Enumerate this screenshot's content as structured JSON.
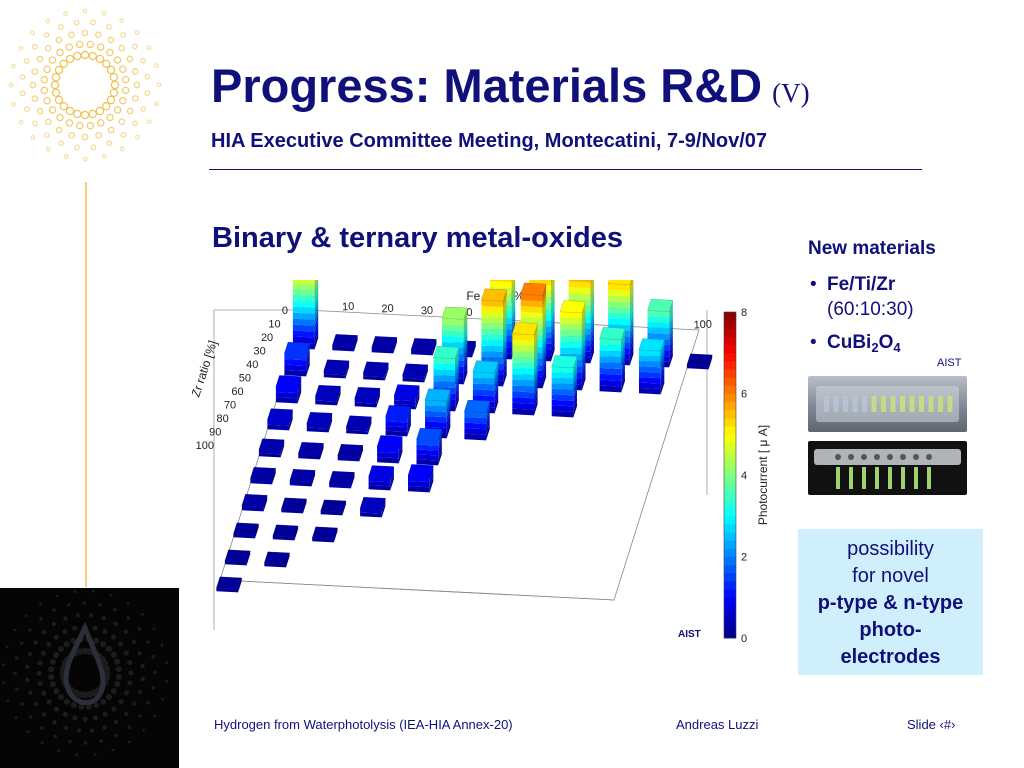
{
  "header": {
    "title": "Progress: Materials R&D",
    "title_part": "(V)",
    "subtitle": "HIA Executive Committee Meeting, Montecatini, 7-9/Nov/07"
  },
  "section_heading": "Binary & ternary metal-oxides",
  "chart_data": {
    "type": "bar3d",
    "x_axis": {
      "label": "Fe ratio [%]",
      "ticks": [
        "0",
        "10",
        "20",
        "30",
        "40",
        "50",
        "60",
        "70",
        "80",
        "90",
        "100"
      ]
    },
    "y_axis": {
      "label": "Zr ratio [%]",
      "ticks": [
        "0",
        "10",
        "20",
        "30",
        "40",
        "50",
        "60",
        "70",
        "80",
        "90",
        "100"
      ]
    },
    "colorbar": {
      "label": "Photocurrent [ μ A]",
      "ticks": [
        "0",
        "2",
        "4",
        "6",
        "8"
      ],
      "range": [
        0,
        8
      ]
    },
    "cells": [
      {
        "fe": 0,
        "zr": 10,
        "value": 5.0
      },
      {
        "fe": 0,
        "zr": 20,
        "value": 1.4
      },
      {
        "fe": 0,
        "zr": 30,
        "value": 1.0
      },
      {
        "fe": 0,
        "zr": 40,
        "value": 0.6
      },
      {
        "fe": 0,
        "zr": 50,
        "value": 0.4
      },
      {
        "fe": 0,
        "zr": 60,
        "value": 0.3
      },
      {
        "fe": 0,
        "zr": 70,
        "value": 0.3
      },
      {
        "fe": 0,
        "zr": 80,
        "value": 0.2
      },
      {
        "fe": 0,
        "zr": 90,
        "value": 0.2
      },
      {
        "fe": 0,
        "zr": 100,
        "value": 0.2
      },
      {
        "fe": 10,
        "zr": 10,
        "value": 0.3
      },
      {
        "fe": 10,
        "zr": 20,
        "value": 0.4
      },
      {
        "fe": 10,
        "zr": 30,
        "value": 0.5
      },
      {
        "fe": 10,
        "zr": 40,
        "value": 0.5
      },
      {
        "fe": 10,
        "zr": 50,
        "value": 0.3
      },
      {
        "fe": 10,
        "zr": 60,
        "value": 0.3
      },
      {
        "fe": 10,
        "zr": 70,
        "value": 0.2
      },
      {
        "fe": 10,
        "zr": 80,
        "value": 0.2
      },
      {
        "fe": 10,
        "zr": 90,
        "value": 0.2
      },
      {
        "fe": 20,
        "zr": 10,
        "value": 0.3
      },
      {
        "fe": 20,
        "zr": 20,
        "value": 0.4
      },
      {
        "fe": 20,
        "zr": 30,
        "value": 0.5
      },
      {
        "fe": 20,
        "zr": 40,
        "value": 0.4
      },
      {
        "fe": 20,
        "zr": 50,
        "value": 0.3
      },
      {
        "fe": 20,
        "zr": 60,
        "value": 0.3
      },
      {
        "fe": 20,
        "zr": 70,
        "value": 0.2
      },
      {
        "fe": 20,
        "zr": 80,
        "value": 0.2
      },
      {
        "fe": 30,
        "zr": 10,
        "value": 0.3
      },
      {
        "fe": 30,
        "zr": 20,
        "value": 0.4
      },
      {
        "fe": 30,
        "zr": 30,
        "value": 0.8
      },
      {
        "fe": 30,
        "zr": 40,
        "value": 1.2
      },
      {
        "fe": 30,
        "zr": 50,
        "value": 1.0
      },
      {
        "fe": 30,
        "zr": 60,
        "value": 0.8
      },
      {
        "fe": 30,
        "zr": 70,
        "value": 0.5
      },
      {
        "fe": 40,
        "zr": 10,
        "value": 0.3
      },
      {
        "fe": 40,
        "zr": 20,
        "value": 4.2
      },
      {
        "fe": 40,
        "zr": 30,
        "value": 3.4
      },
      {
        "fe": 40,
        "zr": 40,
        "value": 2.4
      },
      {
        "fe": 40,
        "zr": 50,
        "value": 1.6
      },
      {
        "fe": 40,
        "zr": 60,
        "value": 1.0
      },
      {
        "fe": 50,
        "zr": 10,
        "value": 7.3
      },
      {
        "fe": 50,
        "zr": 20,
        "value": 5.5
      },
      {
        "fe": 50,
        "zr": 30,
        "value": 2.6
      },
      {
        "fe": 50,
        "zr": 40,
        "value": 1.8
      },
      {
        "fe": 60,
        "zr": 10,
        "value": 6.8
      },
      {
        "fe": 60,
        "zr": 20,
        "value": 6.0
      },
      {
        "fe": 60,
        "zr": 30,
        "value": 5.2
      },
      {
        "fe": 70,
        "zr": 10,
        "value": 5.6
      },
      {
        "fe": 70,
        "zr": 20,
        "value": 5.0
      },
      {
        "fe": 70,
        "zr": 30,
        "value": 3.2
      },
      {
        "fe": 80,
        "zr": 10,
        "value": 5.2
      },
      {
        "fe": 80,
        "zr": 20,
        "value": 3.4
      },
      {
        "fe": 90,
        "zr": 10,
        "value": 3.6
      },
      {
        "fe": 90,
        "zr": 20,
        "value": 2.8
      },
      {
        "fe": 100,
        "zr": 10,
        "value": 0.2
      }
    ],
    "annotation": "AIST"
  },
  "sidebar": {
    "heading": "New materials",
    "bullets": [
      {
        "main": "Fe/Ti/Zr",
        "detail": "(60:10:30)"
      },
      {
        "main": "CuBi",
        "sub1": "2",
        "mid": "O",
        "sub2": "4"
      }
    ],
    "credit": "AIST"
  },
  "callout": {
    "line1": "possibility",
    "line2": "for novel",
    "line3": "p-type & n-type",
    "line4": "photo-",
    "line5": "electrodes"
  },
  "footer": {
    "left": "Hydrogen from Waterphotolysis (IEA-HIA Annex-20)",
    "center": "Andreas Luzzi",
    "right": "Slide ‹#›"
  },
  "colors": {
    "text_primary": "#10107a",
    "accent_gold": "#f3cf7a",
    "callout_bg": "#cfeffc"
  }
}
